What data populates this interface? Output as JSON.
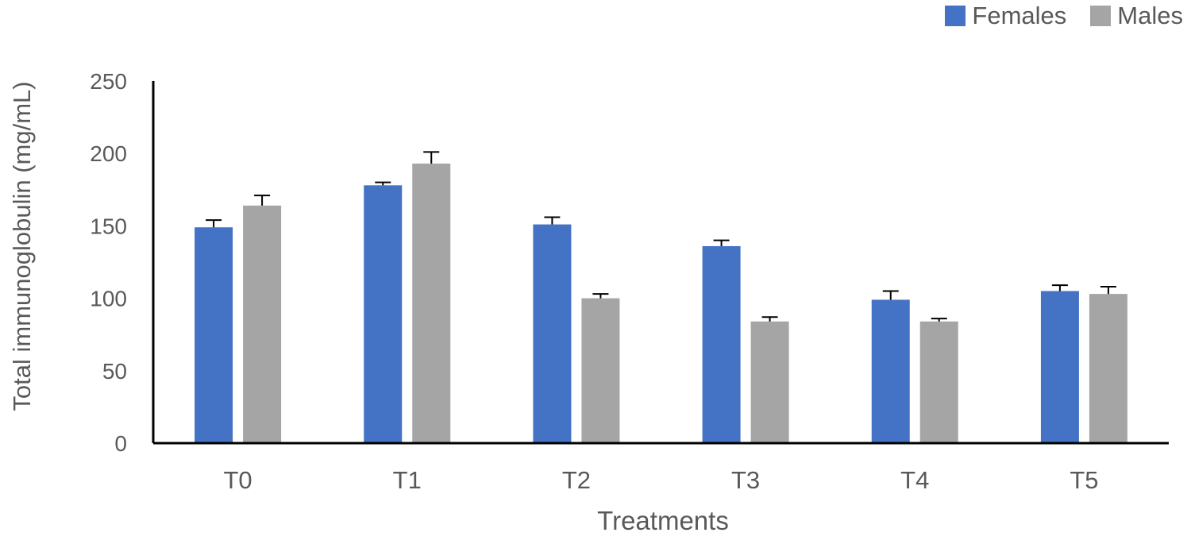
{
  "chart_data": {
    "type": "bar",
    "categories": [
      "T0",
      "T1",
      "T2",
      "T3",
      "T4",
      "T5"
    ],
    "series": [
      {
        "name": "Females",
        "color": "#4472C4",
        "values": [
          149,
          178,
          151,
          136,
          99,
          105
        ],
        "errors": [
          5,
          2,
          5,
          4,
          6,
          4
        ]
      },
      {
        "name": "Males",
        "color": "#A5A5A5",
        "values": [
          164,
          193,
          100,
          84,
          84,
          103
        ],
        "errors": [
          7,
          8,
          3,
          3,
          2,
          5
        ]
      }
    ],
    "xlabel": "Treatments",
    "ylabel": "Total immunoglobulin  (mg/mL)",
    "ylim": [
      0,
      250
    ],
    "yticks": [
      "0",
      "50",
      "100",
      "150",
      "200",
      "250"
    ],
    "grid": false,
    "legend_position": "top-right"
  }
}
